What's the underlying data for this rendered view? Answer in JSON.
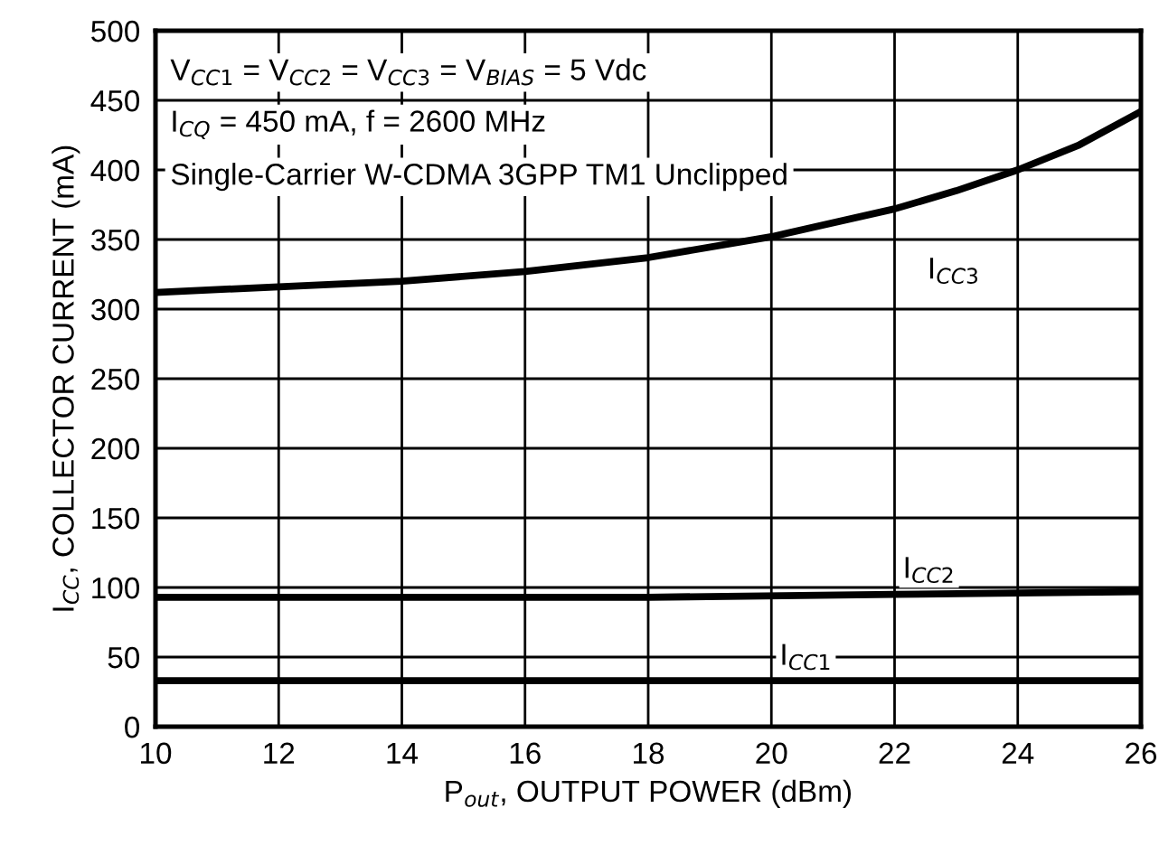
{
  "chart_data": {
    "type": "line",
    "xlabel": "P$_{out}$, OUTPUT POWER (dBm)",
    "ylabel": "I$_{CC}$, COLLECTOR CURRENT (mA)",
    "xlim": [
      10,
      26
    ],
    "xticks": [
      10,
      12,
      14,
      16,
      18,
      20,
      22,
      24,
      26
    ],
    "ylim": [
      0,
      500
    ],
    "yticks": [
      0,
      50,
      100,
      150,
      200,
      250,
      300,
      350,
      400,
      450,
      500
    ],
    "grid": true,
    "marker": "none",
    "line_style": "solid",
    "annotations": [
      "V$_{CC1}$ = V$_{CC2}$ = V$_{CC3}$ = V$_{BIAS}$ = 5 Vdc",
      "I$_{CQ}$ = 450 mA, f = 2600 MHz",
      "Single-Carrier W-CDMA 3GPP TM1 Unclipped"
    ],
    "series": [
      {
        "name": "I$_{CC3}$",
        "color": "#000000",
        "x": [
          10,
          12,
          14,
          16,
          18,
          20,
          22,
          23,
          24,
          25,
          26
        ],
        "values": [
          312,
          316,
          320,
          327,
          337,
          352,
          372,
          385,
          400,
          418,
          442
        ]
      },
      {
        "name": "I$_{CC2}$",
        "color": "#000000",
        "x": [
          10,
          14,
          18,
          22,
          24,
          26
        ],
        "values": [
          93,
          93,
          93,
          95,
          96,
          97
        ]
      },
      {
        "name": "I$_{CC1}$",
        "color": "#000000",
        "x": [
          10,
          14,
          18,
          22,
          26
        ],
        "values": [
          33,
          33,
          33,
          33,
          33
        ]
      }
    ]
  }
}
